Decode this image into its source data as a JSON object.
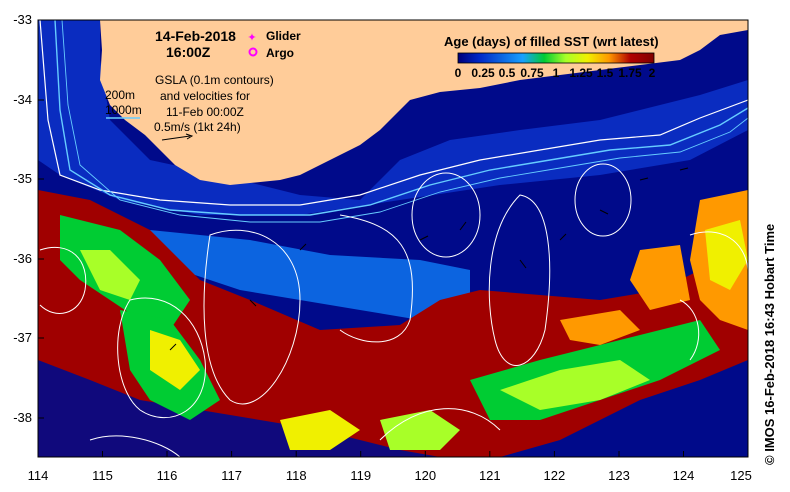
{
  "title": {
    "date": "14-Feb-2018",
    "time": "16:00Z"
  },
  "legend_markers": [
    {
      "label": "Glider",
      "color": "#ff00ff",
      "symbol": "star"
    },
    {
      "label": "Argo",
      "color": "#ff00ff",
      "symbol": "circle"
    }
  ],
  "gsla_note": {
    "line1": "GSLA (0.1m contours)",
    "line2": "and velocities for",
    "line3": "11-Feb 00:00Z",
    "line4": "0.5m/s (1kt 24h)"
  },
  "isobaths": [
    {
      "label": "200m",
      "color": "#ffffff"
    },
    {
      "label": "1000m",
      "color": "#66ccff"
    }
  ],
  "colorbar": {
    "title": "Age (days) of filled SST (wrt latest)",
    "tick_labels": [
      "0",
      "0.25",
      "0.5",
      "0.75",
      "1",
      "1.25",
      "1.5",
      "1.75",
      "2"
    ],
    "colors": [
      "#00007a",
      "#0028c8",
      "#0c64e0",
      "#18a0ff",
      "#00cc33",
      "#a8ff28",
      "#f0f000",
      "#ff9900",
      "#b00000",
      "#800000"
    ]
  },
  "axes": {
    "x_ticks": [
      "114",
      "115",
      "116",
      "117",
      "118",
      "119",
      "120",
      "121",
      "122",
      "123",
      "124",
      "125"
    ],
    "y_ticks": [
      "-33",
      "-34",
      "-35",
      "-36",
      "-37",
      "-38"
    ],
    "lon_range": [
      114,
      125
    ],
    "lat_range": [
      -38.5,
      -33
    ]
  },
  "credit": "© IMOS 16-Feb-2018 16:43 Hobart Time",
  "colors": {
    "land": "#ffcc99",
    "deep_water": "#000a8a",
    "no_data": "#000a8a"
  }
}
